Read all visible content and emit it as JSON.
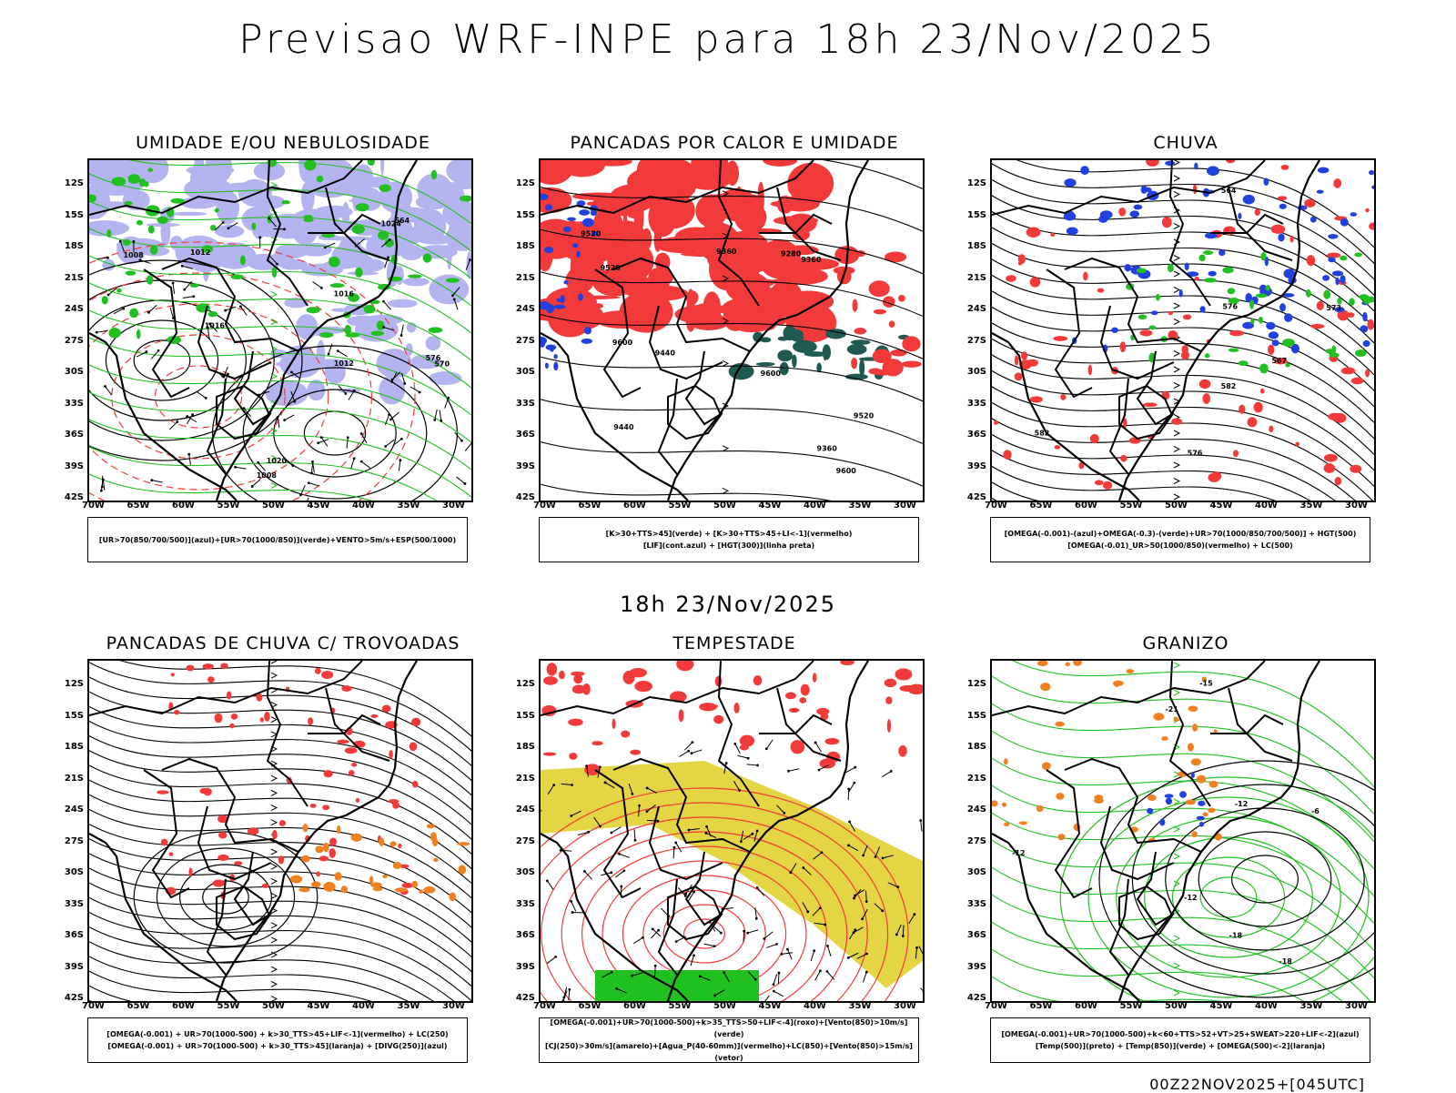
{
  "header": {
    "title": "Previsao WRF-INPE  para 18h 23/Nov/2025"
  },
  "mid_label": "18h 23/Nov/2025",
  "footer": {
    "run": "00Z22NOV2025+[045UTC]"
  },
  "colors": {
    "red": "#f23a3a",
    "green": "#20c020",
    "blue": "#2040e0",
    "lavender": "#b4b4f0",
    "yellow": "#e0d030",
    "darkgreen": "#1f5a52",
    "orange": "#f08020"
  },
  "lat_labels": [
    "12S",
    "15S",
    "18S",
    "21S",
    "24S",
    "27S",
    "30S",
    "33S",
    "36S",
    "39S",
    "42S"
  ],
  "lon_labels": [
    "70W",
    "65W",
    "60W",
    "55W",
    "50W",
    "45W",
    "40W",
    "35W",
    "30W"
  ],
  "panels": [
    {
      "title": "UMIDADE E/OU NEBULOSIDADE",
      "legend_lines": [
        "[UR>70(850/700/500)](azul)+[UR>70(1000/850)](verde)+VENTO>5m/s+ESP(500/1000)"
      ],
      "contour_labels": [
        "1008",
        "1012",
        "1016",
        "1020",
        "1024",
        "1008",
        "1012",
        "1016",
        "564",
        "570",
        "576"
      ]
    },
    {
      "title": "PANCADAS POR CALOR E UMIDADE",
      "legend_lines": [
        "[K>30+TTS>45](verde) + [K>30+TTS>45+LI<-1](vermelho)",
        "[LIF](cont.azul) + [HGT(300)](linha preta)"
      ],
      "contour_labels": [
        "9600",
        "9600",
        "9600",
        "9520",
        "9520",
        "9520",
        "9440",
        "9440",
        "9360",
        "9360",
        "9280",
        "9360"
      ]
    },
    {
      "title": "CHUVA",
      "legend_lines": [
        "[OMEGA(-0.001)-(azul)+OMEGA(-0.3)-(verde)+UR>70(1000/850/700/500)] + HGT(500)",
        "[OMEGA(-0.01)_UR>50(1000/850)(vermelho) + LC(500)"
      ],
      "contour_labels": [
        "582",
        "582",
        "576",
        "576",
        "573",
        "567",
        "564"
      ]
    },
    {
      "title": "PANCADAS DE CHUVA C/ TROVOADAS",
      "legend_lines": [
        "[OMEGA(-0.001) + UR>70(1000-500) + k>30_TTS>45+LIF<-1](vermelho) + LC(250)",
        "[OMEGA(-0.001) + UR>70(1000-500) + k>30_TTS>45](laranja) + [DIVG(250)](azul)"
      ],
      "contour_labels": []
    },
    {
      "title": "TEMPESTADE",
      "legend_lines": [
        "[OMEGA(-0.001)+UR>70(1000-500)+k>35_TTS>50+LIF<-4](roxo)+[Vento(850)>10m/s](verde)",
        "[CJ(250)>30m/s](amarelo)+[Agua_P(40-60mm)](vermelho)+LC(850)+[Vento(850)>15m/s](vetor)"
      ],
      "contour_labels": []
    },
    {
      "title": "GRANIZO",
      "legend_lines": [
        "[OMEGA(-0.001)+UR>70(1000-500)+k<60+TTS>52+VT>25+SWEAT>220+LIF<-2](azul)",
        "[Temp(500)](preto) + [Temp(850)](verde) + [OMEGA(500)<-2](laranja)"
      ],
      "contour_labels": [
        "-6",
        "-12",
        "-18",
        "-15",
        "-18",
        "-21",
        "-12",
        "-12"
      ]
    }
  ]
}
